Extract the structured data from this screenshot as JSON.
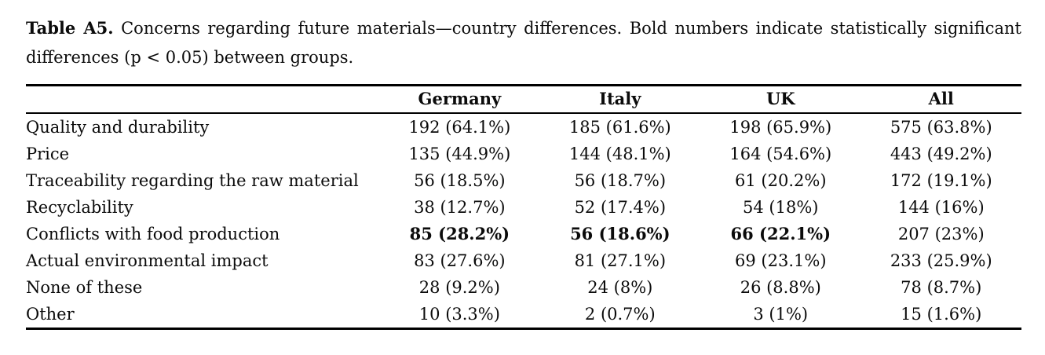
{
  "caption": {
    "label": "Table A5.",
    "text": " Concerns regarding future materials—country differences. Bold numbers indicate statistically significant differences (p < 0.05) between groups."
  },
  "table": {
    "columns": [
      "",
      "Germany",
      "Italy",
      "UK",
      "All"
    ],
    "rows": [
      {
        "label": "Quality and durability",
        "values": [
          "192 (64.1%)",
          "185 (61.6%)",
          "198 (65.9%)",
          "575 (63.8%)"
        ],
        "bold": [
          false,
          false,
          false,
          false
        ]
      },
      {
        "label": "Price",
        "values": [
          "135 (44.9%)",
          "144 (48.1%)",
          "164 (54.6%)",
          "443 (49.2%)"
        ],
        "bold": [
          false,
          false,
          false,
          false
        ]
      },
      {
        "label": "Traceability regarding the raw material",
        "values": [
          "56 (18.5%)",
          "56 (18.7%)",
          "61 (20.2%)",
          "172 (19.1%)"
        ],
        "bold": [
          false,
          false,
          false,
          false
        ]
      },
      {
        "label": "Recyclability",
        "values": [
          "38 (12.7%)",
          "52 (17.4%)",
          "54 (18%)",
          "144 (16%)"
        ],
        "bold": [
          false,
          false,
          false,
          false
        ]
      },
      {
        "label": "Conflicts with food production",
        "values": [
          "85 (28.2%)",
          "56 (18.6%)",
          "66 (22.1%)",
          "207 (23%)"
        ],
        "bold": [
          true,
          true,
          true,
          false
        ]
      },
      {
        "label": "Actual environmental impact",
        "values": [
          "83 (27.6%)",
          "81 (27.1%)",
          "69 (23.1%)",
          "233 (25.9%)"
        ],
        "bold": [
          false,
          false,
          false,
          false
        ]
      },
      {
        "label": "None of these",
        "values": [
          "28 (9.2%)",
          "24 (8%)",
          "26 (8.8%)",
          "78 (8.7%)"
        ],
        "bold": [
          false,
          false,
          false,
          false
        ]
      },
      {
        "label": "Other",
        "values": [
          "10 (3.3%)",
          "2 (0.7%)",
          "3 (1%)",
          "15 (1.6%)"
        ],
        "bold": [
          false,
          false,
          false,
          false
        ]
      }
    ]
  }
}
